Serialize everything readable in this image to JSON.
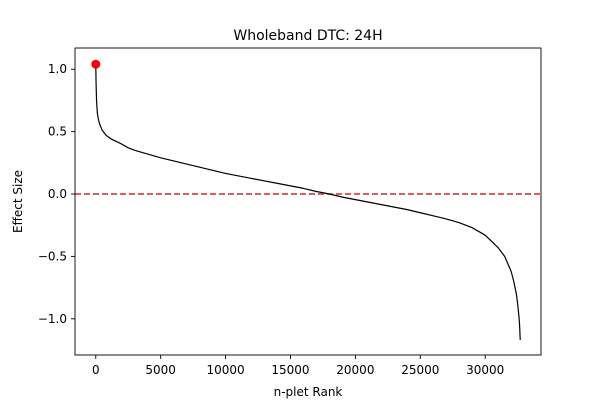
{
  "chart_data": {
    "type": "line",
    "title": "Wholeband DTC: 24H",
    "xlabel": "n-plet Rank",
    "ylabel": "Effect Size",
    "xlim": [
      -1600,
      34300
    ],
    "ylim": [
      -1.29,
      1.17
    ],
    "xticks": [
      0,
      5000,
      10000,
      15000,
      20000,
      25000,
      30000
    ],
    "xtick_labels": [
      "0",
      "5000",
      "10000",
      "15000",
      "20000",
      "25000",
      "30000"
    ],
    "yticks": [
      1.0,
      0.5,
      0.0,
      -0.5,
      -1.0
    ],
    "ytick_labels": [
      "1.0",
      "0.5",
      "0.0",
      "−0.5",
      "−1.0"
    ],
    "grid": false,
    "series": [
      {
        "color": "#000000",
        "x": [
          0,
          20,
          60,
          120,
          200,
          300,
          500,
          800,
          1200,
          1600,
          2000,
          2500,
          3000,
          4000,
          5000,
          6000,
          7000,
          8000,
          9000,
          10000,
          11000,
          12000,
          13000,
          14000,
          15000,
          16000,
          17000,
          18000,
          19000,
          20000,
          21000,
          22000,
          23000,
          24000,
          25000,
          26000,
          27000,
          28000,
          29000,
          29500,
          30000,
          30500,
          31000,
          31500,
          32000,
          32200,
          32400,
          32500,
          32600,
          32650,
          32700
        ],
        "y": [
          1.04,
          0.9,
          0.75,
          0.65,
          0.6,
          0.56,
          0.51,
          0.47,
          0.44,
          0.42,
          0.4,
          0.37,
          0.35,
          0.32,
          0.29,
          0.265,
          0.24,
          0.215,
          0.19,
          0.165,
          0.145,
          0.125,
          0.105,
          0.085,
          0.065,
          0.045,
          0.02,
          0.0,
          -0.025,
          -0.045,
          -0.065,
          -0.085,
          -0.105,
          -0.125,
          -0.15,
          -0.175,
          -0.2,
          -0.23,
          -0.27,
          -0.3,
          -0.33,
          -0.38,
          -0.43,
          -0.5,
          -0.62,
          -0.7,
          -0.8,
          -0.88,
          -0.98,
          -1.05,
          -1.17
        ]
      }
    ],
    "reference_line": {
      "y": 0,
      "color": "#d62728",
      "style": "dashed"
    },
    "highlight_point": {
      "x": 0,
      "y": 1.04,
      "color": "#ff0000"
    }
  }
}
